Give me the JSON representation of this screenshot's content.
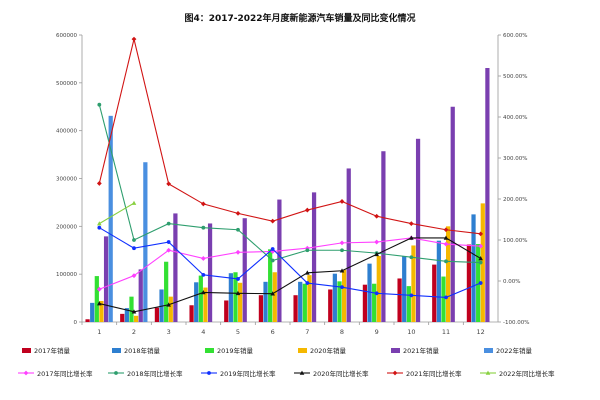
{
  "chart_data": {
    "type": "bar+line",
    "title": "图4：2017-2022年月度新能源汽车销量及同比变化情况",
    "categories": [
      "1",
      "2",
      "3",
      "4",
      "5",
      "6",
      "7",
      "8",
      "9",
      "10",
      "11",
      "12"
    ],
    "y_left": {
      "min": 0,
      "max": 600000,
      "step": 100000,
      "tick_labels": [
        "0",
        "100000",
        "200000",
        "300000",
        "400000",
        "500000",
        "600000"
      ]
    },
    "y_right": {
      "min": -100,
      "max": 600,
      "step": 100,
      "tick_labels": [
        "-100.00%",
        "0.00%",
        "100.00%",
        "200.00%",
        "300.00%",
        "400.00%",
        "500.00%",
        "600.00%"
      ]
    },
    "bar_series": [
      {
        "name": "2017年销量",
        "color": "#c0001e",
        "values": [
          5700,
          17000,
          30000,
          35000,
          45000,
          56000,
          56000,
          68000,
          78000,
          91000,
          120000,
          162000
        ]
      },
      {
        "name": "2018年销量",
        "color": "#2e7fd0",
        "values": [
          40000,
          29000,
          68000,
          83000,
          102000,
          84000,
          84000,
          101000,
          122000,
          138000,
          170000,
          225000
        ]
      },
      {
        "name": "2019年销量",
        "color": "#33e033",
        "values": [
          96000,
          53000,
          126000,
          97000,
          104000,
          152000,
          80000,
          85000,
          80000,
          75000,
          95000,
          163000
        ]
      },
      {
        "name": "2020年销量",
        "color": "#f5b800",
        "values": [
          44000,
          13000,
          53000,
          72000,
          82000,
          104000,
          98000,
          109000,
          138000,
          160000,
          200000,
          248000
        ]
      },
      {
        "name": "2021年销量",
        "color": "#7a3fb0",
        "values": [
          179000,
          110000,
          227000,
          206000,
          217000,
          256000,
          271000,
          321000,
          357000,
          383000,
          450000,
          531000
        ]
      },
      {
        "name": "2022年销量",
        "color": "#4a8fe0",
        "values": [
          431000,
          334000,
          null,
          null,
          null,
          null,
          null,
          null,
          null,
          null,
          null,
          null
        ]
      }
    ],
    "line_series": [
      {
        "name": "2017年同比增长率",
        "color": "#ff40ff",
        "marker": "diamond",
        "values": [
          -20,
          13,
          75,
          55,
          70,
          72,
          80,
          93,
          95,
          105,
          90,
          85
        ]
      },
      {
        "name": "2018年同比增长率",
        "color": "#2e9e6e",
        "marker": "circle",
        "values": [
          430,
          100,
          140,
          130,
          125,
          50,
          75,
          75,
          68,
          58,
          48,
          45
        ]
      },
      {
        "name": "2019年同比增长率",
        "color": "#1030ff",
        "marker": "circle",
        "values": [
          130,
          80,
          95,
          15,
          5,
          78,
          -5,
          -15,
          -30,
          -35,
          -40,
          -5
        ]
      },
      {
        "name": "2020年同比增长率",
        "color": "#111111",
        "marker": "triangle",
        "values": [
          -55,
          -75,
          -58,
          -28,
          -30,
          -31,
          20,
          25,
          65,
          105,
          105,
          55
        ]
      },
      {
        "name": "2021年同比增长率",
        "color": "#d11414",
        "marker": "diamond",
        "values": [
          238,
          590,
          237,
          188,
          165,
          146,
          173,
          194,
          158,
          140,
          125,
          115
        ]
      },
      {
        "name": "2022年同比增长率",
        "color": "#88d040",
        "marker": "triangle",
        "values": [
          140,
          190,
          null,
          null,
          null,
          null,
          null,
          null,
          null,
          null,
          null,
          null
        ]
      }
    ],
    "legend_position": "bottom",
    "grid": false
  }
}
